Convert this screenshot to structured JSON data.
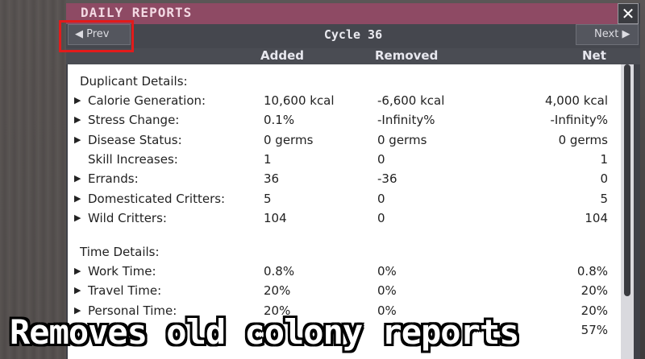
{
  "window": {
    "title": "DAILY REPORTS",
    "close_glyph": "✕"
  },
  "nav": {
    "prev_label": "Prev",
    "next_label": "Next",
    "prev_arrow": "◀",
    "next_arrow": "▶",
    "cycle": "Cycle 36"
  },
  "columns": {
    "added": "Added",
    "removed": "Removed",
    "net": "Net"
  },
  "sections": {
    "duplicant": "Duplicant Details:",
    "time": "Time Details:"
  },
  "duplicant_rows": [
    {
      "label": "Calorie Generation:",
      "added": "10,600 kcal",
      "removed": "-6,600 kcal",
      "net": "4,000 kcal",
      "expandable": true
    },
    {
      "label": "Stress Change:",
      "added": "0.1%",
      "removed": "-Infinity%",
      "net": "-Infinity%",
      "expandable": true
    },
    {
      "label": "Disease Status:",
      "added": "0 germs",
      "removed": "0 germs",
      "net": "0 germs",
      "expandable": true
    },
    {
      "label": "Skill Increases:",
      "added": "1",
      "removed": "0",
      "net": "1",
      "expandable": false
    },
    {
      "label": "Errands:",
      "added": "36",
      "removed": "-36",
      "net": "0",
      "expandable": true
    },
    {
      "label": "Domesticated Critters:",
      "added": "5",
      "removed": "0",
      "net": "5",
      "expandable": true
    },
    {
      "label": "Wild Critters:",
      "added": "104",
      "removed": "0",
      "net": "104",
      "expandable": true
    }
  ],
  "time_rows": [
    {
      "label": "Work Time:",
      "added": "0.8%",
      "removed": "0%",
      "net": "0.8%",
      "expandable": true
    },
    {
      "label": "Travel Time:",
      "added": "20%",
      "removed": "0%",
      "net": "20%",
      "expandable": true
    },
    {
      "label": "Personal Time:",
      "added": "20%",
      "removed": "0%",
      "net": "20%",
      "expandable": true
    },
    {
      "label": "",
      "added": "",
      "removed": "",
      "net": "57%",
      "expandable": false
    }
  ],
  "caption": "Removes old colony reports",
  "colors": {
    "titlebar": "#8e4a64",
    "highlight": "#e21b1b"
  }
}
